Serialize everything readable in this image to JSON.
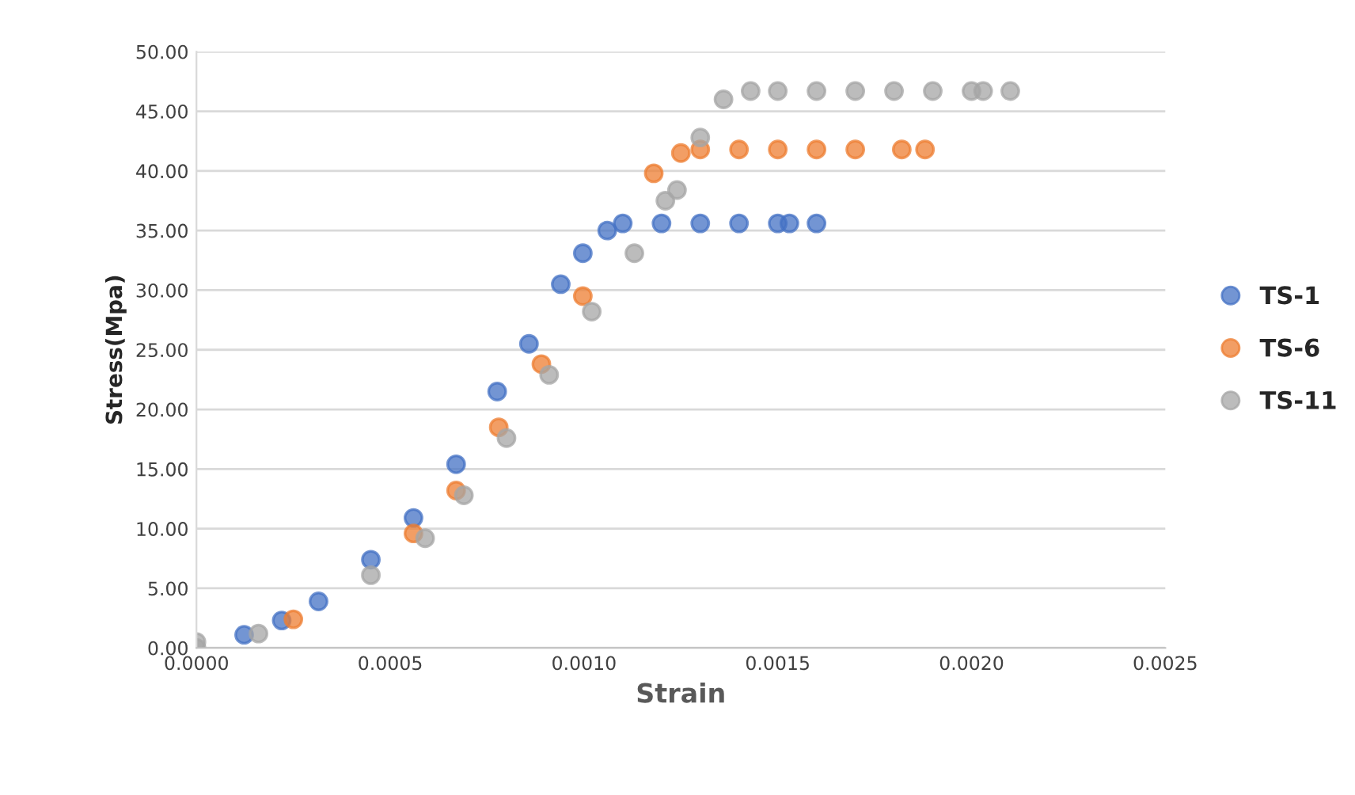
{
  "chart_data": {
    "type": "scatter",
    "xlabel": "Strain",
    "ylabel": "Stress(Mpa)",
    "xlim": [
      0,
      0.0025
    ],
    "ylim": [
      0,
      50
    ],
    "xticks": [
      {
        "value": 0,
        "label": "0.0000"
      },
      {
        "value": 0.0005,
        "label": "0.0005"
      },
      {
        "value": 0.001,
        "label": "0.0010"
      },
      {
        "value": 0.0015,
        "label": "0.0015"
      },
      {
        "value": 0.002,
        "label": "0.0020"
      },
      {
        "value": 0.0025,
        "label": "0.0025"
      }
    ],
    "yticks": [
      {
        "value": 0,
        "label": "0.00"
      },
      {
        "value": 5,
        "label": "5.00"
      },
      {
        "value": 10,
        "label": "10.00"
      },
      {
        "value": 15,
        "label": "15.00"
      },
      {
        "value": 20,
        "label": "20.00"
      },
      {
        "value": 25,
        "label": "25.00"
      },
      {
        "value": 30,
        "label": "30.00"
      },
      {
        "value": 35,
        "label": "35.00"
      },
      {
        "value": 40,
        "label": "40.00"
      },
      {
        "value": 45,
        "label": "45.00"
      },
      {
        "value": 50,
        "label": "50.00"
      }
    ],
    "grid": "y",
    "legend": "right",
    "marker": "circle",
    "series": [
      {
        "name": "TS-1",
        "color": "#4472c4",
        "x": [
          0.000123,
          0.00022,
          0.000315,
          0.00045,
          0.00056,
          0.00067,
          0.000776,
          0.000858,
          0.00094,
          0.000997,
          0.00106,
          0.0011,
          0.0012,
          0.0013,
          0.0014,
          0.0015,
          0.00153,
          0.0016
        ],
        "values": [
          1.1,
          2.3,
          3.9,
          7.4,
          10.9,
          15.4,
          21.5,
          25.5,
          30.5,
          33.1,
          35.0,
          35.6,
          35.6,
          35.6,
          35.6,
          35.6,
          35.6,
          35.6
        ]
      },
      {
        "name": "TS-6",
        "color": "#ed7d31",
        "x": [
          0.00025,
          0.00056,
          0.00067,
          0.00078,
          0.00089,
          0.000997,
          0.00118,
          0.00125,
          0.0013,
          0.0014,
          0.0015,
          0.0016,
          0.0017,
          0.00182,
          0.00188
        ],
        "values": [
          2.4,
          9.6,
          13.2,
          18.5,
          23.8,
          29.5,
          39.8,
          41.5,
          41.8,
          41.8,
          41.8,
          41.8,
          41.8,
          41.8,
          41.8
        ]
      },
      {
        "name": "TS-11",
        "color": "#a5a5a5",
        "x": [
          0,
          0,
          0.00016,
          0.00045,
          0.00059,
          0.00069,
          0.0008,
          0.00091,
          0.00102,
          0.00113,
          0.00121,
          0.00124,
          0.0013,
          0.00136,
          0.00143,
          0.0015,
          0.0016,
          0.0017,
          0.0018,
          0.0019,
          0.002,
          0.00203,
          0.0021
        ],
        "values": [
          0,
          0.5,
          1.2,
          6.1,
          9.2,
          12.8,
          17.6,
          22.9,
          28.2,
          33.1,
          37.5,
          38.4,
          42.8,
          46.0,
          46.7,
          46.7,
          46.7,
          46.7,
          46.7,
          46.7,
          46.7,
          46.7,
          46.7
        ]
      }
    ]
  }
}
